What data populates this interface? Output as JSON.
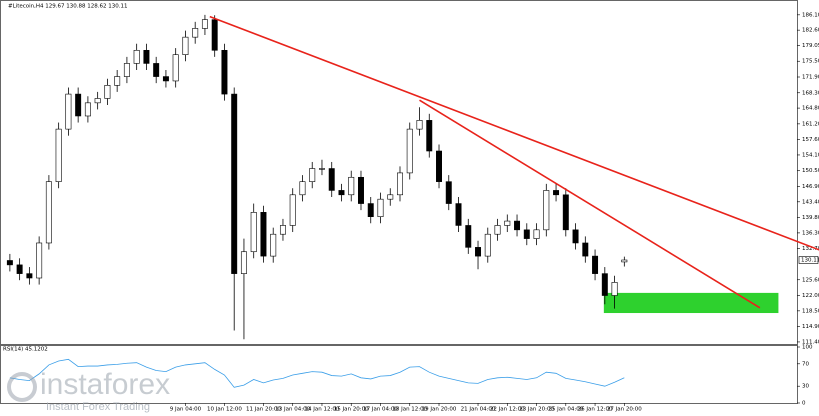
{
  "chart_data": {
    "type": "candlestick",
    "title": "#Litecoin,H4  129.67 130.88 128.62 130.11",
    "current_price": {
      "value": 130.11,
      "label": "130.11"
    },
    "up_color": "#ffffff",
    "down_color": "#000000",
    "wick_color": "#000000",
    "categories": [
      null,
      null,
      null,
      null,
      null,
      null,
      null,
      null,
      null,
      null,
      null,
      null,
      null,
      null,
      null,
      null,
      null,
      null,
      "9 Jan 04:00",
      null,
      null,
      null,
      "10 Jan 12:00",
      null,
      null,
      null,
      "11 Jan 20:00",
      null,
      null,
      "13 Jan 04:00",
      null,
      null,
      "14 Jan 12:00",
      null,
      null,
      "15 Jan 20:00",
      null,
      null,
      "17 Jan 04:00",
      null,
      null,
      "18 Jan 12:00",
      null,
      null,
      "19 Jan 20:00",
      null,
      null,
      null,
      "21 Jan 04:00",
      null,
      null,
      "22 Jan 12:00",
      null,
      null,
      "23 Jan 20:00",
      null,
      null,
      "25 Jan 04:00",
      null,
      null,
      "26 Jan 12:00",
      null,
      null,
      "27 Jan 20:00"
    ],
    "open": [
      130,
      129,
      127,
      126,
      134,
      148,
      160,
      168,
      163,
      166,
      167,
      170,
      172,
      175,
      178,
      175,
      172,
      171,
      177,
      181,
      183,
      185,
      178,
      168,
      127,
      132,
      141,
      131,
      136,
      138,
      145,
      148,
      151,
      151,
      146,
      145,
      149,
      143,
      140,
      144,
      145,
      150,
      160,
      162,
      155,
      148,
      143,
      138,
      133,
      131,
      136,
      138,
      139,
      137,
      135,
      137,
      146,
      145,
      137,
      134,
      131,
      127,
      122,
      129.67
    ],
    "high": [
      131.5,
      130.5,
      128.5,
      135.5,
      149.5,
      161.5,
      169.5,
      169.5,
      167.5,
      168.5,
      171.5,
      173.5,
      176.5,
      179.5,
      179.5,
      176.5,
      173.5,
      178.5,
      182.5,
      184.5,
      186.1,
      186,
      179.5,
      169.5,
      135,
      143,
      142.5,
      137.5,
      139.5,
      146.5,
      149.5,
      152.5,
      153,
      152.5,
      147.5,
      150.5,
      150.5,
      144.5,
      145.5,
      146.5,
      151.5,
      161.5,
      165,
      163.5,
      156.5,
      149.5,
      144.5,
      139.5,
      134.5,
      137.5,
      139.5,
      140.5,
      140.5,
      138.5,
      138.5,
      147.5,
      147.5,
      146.5,
      138.5,
      135.5,
      132.5,
      128.5,
      126.5,
      130.88
    ],
    "low": [
      127.5,
      125.5,
      124.5,
      124.5,
      132.5,
      146.5,
      158.5,
      161.5,
      161.5,
      164.5,
      165.5,
      168.5,
      170.5,
      173.5,
      173.5,
      170.5,
      169.5,
      169.5,
      175.5,
      179.5,
      181.5,
      176.5,
      166.5,
      114,
      112,
      130.5,
      129.5,
      129.5,
      134.5,
      136.5,
      143.5,
      146.5,
      149.5,
      144.5,
      143.5,
      143.5,
      141.5,
      138.5,
      138.5,
      142.5,
      143.5,
      148.5,
      158.5,
      153.5,
      146.5,
      141.5,
      136.5,
      131.5,
      128,
      129.5,
      134.5,
      136.5,
      135.5,
      133.5,
      133.5,
      135.5,
      143.5,
      135.5,
      132.5,
      129.5,
      125.5,
      120,
      119,
      128.62
    ],
    "close": [
      129,
      127,
      126,
      134,
      148,
      160,
      168,
      163,
      166,
      167,
      170,
      172,
      175,
      178,
      175,
      172,
      171,
      177,
      181,
      183,
      185,
      178,
      168,
      127,
      132,
      141,
      131,
      136,
      138,
      145,
      148,
      151,
      151,
      146,
      145,
      149,
      143,
      140,
      144,
      145,
      150,
      160,
      162,
      155,
      148,
      143,
      138,
      133,
      131,
      136,
      138,
      139,
      137,
      135,
      137,
      146,
      145,
      137,
      134,
      131,
      127,
      122,
      125,
      130.11
    ],
    "xlim": [
      -0.5,
      80.5
    ],
    "ylim": [
      110.7,
      188.8
    ],
    "yticks": [
      {
        "value": 186.1,
        "label": "186.10"
      },
      {
        "value": 182.6,
        "label": "182.60"
      },
      179.05,
      {
        "value": 175.5,
        "label": "175.50"
      },
      {
        "value": 171.9,
        "label": "171.90"
      },
      {
        "value": 168.3,
        "label": "168.30"
      },
      {
        "value": 164.8,
        "label": "164.80"
      },
      {
        "value": 161.2,
        "label": "161.20"
      },
      {
        "value": 157.6,
        "label": "157.60"
      },
      {
        "value": 154.1,
        "label": "154.10"
      },
      {
        "value": 150.5,
        "label": "150.50"
      },
      {
        "value": 146.9,
        "label": "146.90"
      },
      {
        "value": 143.4,
        "label": "143.40"
      },
      {
        "value": 139.8,
        "label": "139.80"
      },
      {
        "value": 136.3,
        "label": "136.30"
      },
      {
        "value": 132.7,
        "label": "132.70"
      },
      {
        "value": 125.6,
        "label": "125.60"
      },
      {
        "value": 122,
        "label": "122.00"
      },
      {
        "value": 118.5,
        "label": "118.50"
      },
      {
        "value": 114.9,
        "label": "114.90"
      },
      {
        "value": 111.4,
        "label": "111.40"
      }
    ],
    "trendlines": [
      {
        "color": "#e8231b",
        "x": [
          20.5,
          83
        ],
        "y": [
          185.7,
          132.4
        ]
      },
      {
        "color": "#e8231b",
        "x": [
          42,
          76.9
        ],
        "y": [
          166.6,
          119.2
        ]
      }
    ],
    "zone": {
      "color": "#2ed12e",
      "x": [
        60.9,
        78.8
      ],
      "y": [
        118,
        122.6
      ]
    },
    "rsi": {
      "title": "RSI(14) 45.1202",
      "color": "#3a9ee8",
      "values": [
        45,
        42,
        40,
        52,
        68,
        75,
        78,
        65,
        66,
        66,
        68,
        69,
        71,
        72,
        64,
        58,
        56,
        64,
        68,
        70,
        72,
        60,
        50,
        28,
        32,
        42,
        36,
        41,
        44,
        50,
        53,
        56,
        55,
        49,
        48,
        52,
        45,
        43,
        48,
        49,
        55,
        64,
        65,
        55,
        48,
        44,
        40,
        36,
        35,
        42,
        45,
        46,
        44,
        42,
        45,
        55,
        53,
        44,
        41,
        38,
        34,
        30,
        37,
        45.1202
      ],
      "ylim": [
        0,
        100
      ],
      "yticks": [
        0,
        30,
        70,
        100
      ]
    },
    "watermark": {
      "brand": "instaforex",
      "tagline": "Instant Forex Trading"
    }
  }
}
